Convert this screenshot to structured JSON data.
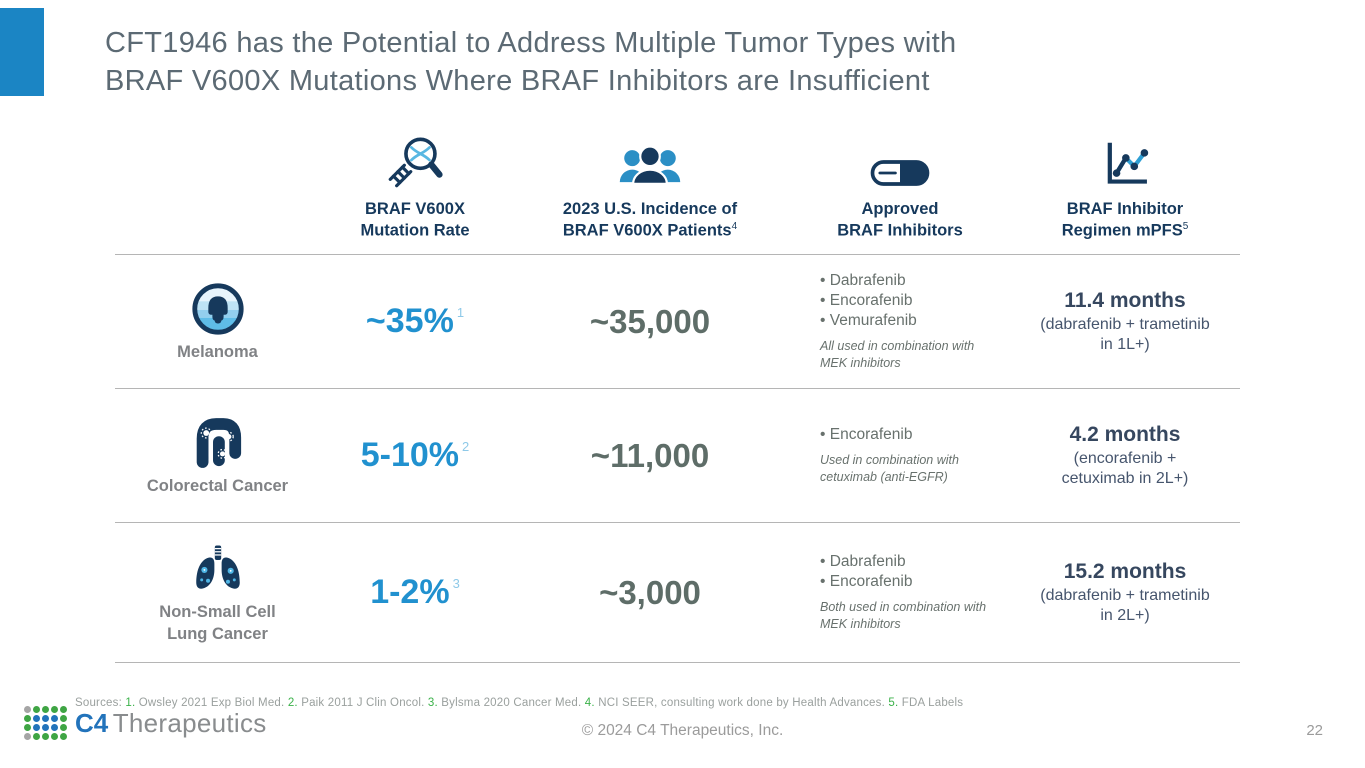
{
  "slide": {
    "title_line1": "CFT1946 has the Potential to Address Multiple Tumor Types with",
    "title_line2": "BRAF V600X Mutations Where BRAF Inhibitors are Insufficient",
    "copyright": "© 2024 C4 Therapeutics, Inc.",
    "page_number": "22"
  },
  "columns": [
    {
      "icon": "dna-magnifier-icon",
      "label_line1": "BRAF V600X",
      "label_line2": "Mutation Rate",
      "superscript": ""
    },
    {
      "icon": "people-group-icon",
      "label_line1": "2023 U.S. Incidence of",
      "label_line2": "BRAF V600X Patients",
      "superscript": "4"
    },
    {
      "icon": "capsule-icon",
      "label_line1": "Approved",
      "label_line2": "BRAF Inhibitors",
      "superscript": ""
    },
    {
      "icon": "line-chart-icon",
      "label_line1": "BRAF Inhibitor",
      "label_line2": "Regimen mPFS",
      "superscript": "5"
    }
  ],
  "rows": [
    {
      "name": "Melanoma",
      "icon": "melanoma-icon",
      "mutation_rate": "~35%",
      "mutation_rate_ref": "1",
      "incidence": "~35,000",
      "inhibitors": [
        "Dabrafenib",
        "Encorafenib",
        "Vemurafenib"
      ],
      "inhibitors_note": "All used in combination with MEK inhibitors",
      "mpfs_value": "11.4 months",
      "mpfs_detail": "(dabrafenib + trametinib in 1L+)"
    },
    {
      "name": "Colorectal Cancer",
      "icon": "colorectal-icon",
      "mutation_rate": "5-10%",
      "mutation_rate_ref": "2",
      "incidence": "~11,000",
      "inhibitors": [
        "Encorafenib"
      ],
      "inhibitors_note": "Used in combination with cetuximab (anti-EGFR)",
      "mpfs_value": "4.2 months",
      "mpfs_detail": "(encorafenib + cetuximab in 2L+)"
    },
    {
      "name": "Non-Small Cell Lung Cancer",
      "icon": "lungs-icon",
      "mutation_rate": "1-2%",
      "mutation_rate_ref": "3",
      "incidence": "~3,000",
      "inhibitors": [
        "Dabrafenib",
        "Encorafenib"
      ],
      "inhibitors_note": "Both used in combination with MEK inhibitors",
      "mpfs_value": "15.2 months",
      "mpfs_detail": "(dabrafenib + trametinib in 2L+)"
    }
  ],
  "sources": {
    "prefix": "Sources: ",
    "items": [
      {
        "num": "1.",
        "text": " Owsley 2021 Exp Biol Med. "
      },
      {
        "num": "2.",
        "text": " Paik 2011 J Clin Oncol. "
      },
      {
        "num": "3.",
        "text": " Bylsma 2020 Cancer Med. "
      },
      {
        "num": "4.",
        "text": " NCI SEER, consulting work done by Health Advances. "
      },
      {
        "num": "5.",
        "text": " FDA Labels"
      }
    ]
  },
  "logo": {
    "c4": "C4",
    "name": "Therapeutics",
    "dot_pattern": [
      [
        "gray",
        "green",
        "green",
        "green",
        "green"
      ],
      [
        "green",
        "blue",
        "blue",
        "blue",
        "green"
      ],
      [
        "green",
        "blue",
        "blue",
        "blue",
        "green"
      ],
      [
        "gray",
        "green",
        "green",
        "green",
        "green"
      ]
    ],
    "dot_colors": {
      "green": "#3fa544",
      "blue": "#2273bb",
      "gray": "#a5a5a5"
    }
  },
  "colors": {
    "accent_blue": "#1b85c4",
    "title_gray": "#5c6a74",
    "header_navy": "#16395c",
    "rate_blue": "#2191cf",
    "incidence_gray": "#5e6d68",
    "mpfs_navy": "#36475f",
    "source_green": "#3bb24a",
    "divider_gray": "#b5b5b5"
  }
}
